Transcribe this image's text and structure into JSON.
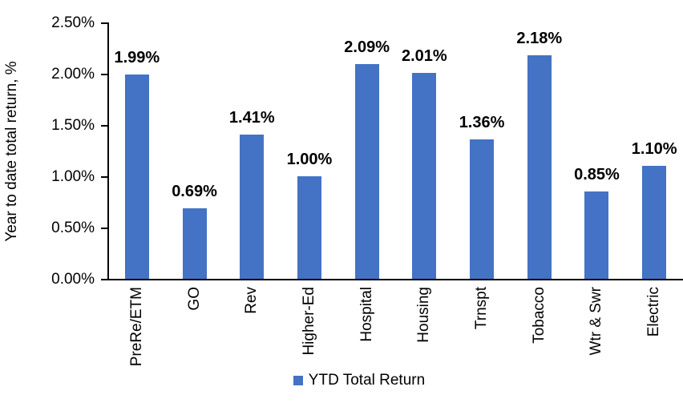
{
  "chart_data": {
    "type": "bar",
    "title": "",
    "ylabel": "Year to date total return, %",
    "xlabel": "",
    "categories": [
      "PreRe/ETM",
      "GO",
      "Rev",
      "Higher-Ed",
      "Hospital",
      "Housing",
      "Trnspt",
      "Tobacco",
      "Wtr & Swr",
      "Electric"
    ],
    "values": [
      1.99,
      0.69,
      1.41,
      1.0,
      2.09,
      2.01,
      1.36,
      2.18,
      0.85,
      1.1
    ],
    "data_labels": [
      "1.99%",
      "0.69%",
      "1.41%",
      "1.00%",
      "2.09%",
      "2.01%",
      "1.36%",
      "2.18%",
      "0.85%",
      "1.10%"
    ],
    "ylim": [
      0,
      2.5
    ],
    "yticks": [
      "0.00%",
      "0.50%",
      "1.00%",
      "1.50%",
      "2.00%",
      "2.50%"
    ],
    "grid": false,
    "legend_position": "bottom",
    "legend": [
      "YTD Total Return"
    ],
    "colors": {
      "bar": "#4472C4",
      "axis": "#000000",
      "text": "#000000"
    }
  }
}
